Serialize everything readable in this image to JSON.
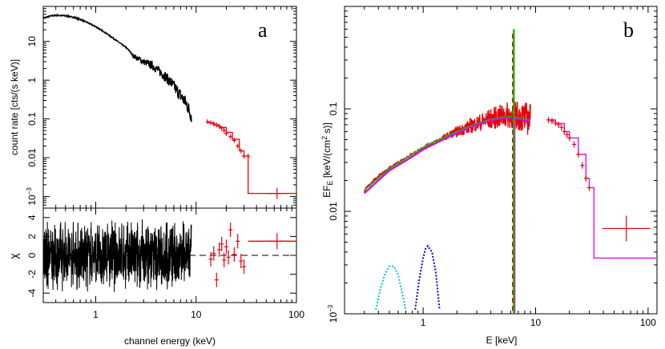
{
  "figure": {
    "colors": {
      "axis": "#000000",
      "data_black": "#000000",
      "data_red": "#e8000b",
      "model_green": "#00c800",
      "model_magenta": "#e000e0",
      "component_cyan": "#00c8c8",
      "component_blue": "#0000c8",
      "zero_line": "#000000"
    }
  },
  "chart_data": [
    {
      "panel": "a",
      "type": "scatter",
      "title": "",
      "xlabel": "channel energy (keV)",
      "ylabel": "count rate [cts/(s keV)]",
      "xscale": "log",
      "yscale": "log",
      "xlim": [
        0.3,
        100
      ],
      "ylim": [
        0.0005,
        80
      ],
      "x_ticks": [
        {
          "v": 1,
          "label": "1"
        },
        {
          "v": 10,
          "label": "10"
        },
        {
          "v": 100,
          "label": "100"
        }
      ],
      "y_ticks": [
        {
          "v": 0.001,
          "label": "10",
          "sup": "−3"
        },
        {
          "v": 0.01,
          "label": "0.01"
        },
        {
          "v": 0.1,
          "label": "0.1"
        },
        {
          "v": 1,
          "label": "1"
        },
        {
          "v": 10,
          "label": "10"
        }
      ],
      "series": [
        {
          "name": "soft-band spectrum",
          "color": "#000000",
          "x": [
            0.3,
            0.35,
            0.4,
            0.5,
            0.6,
            0.7,
            0.8,
            1.0,
            1.2,
            1.5,
            1.8,
            2.0,
            2.2,
            2.3,
            2.4,
            2.6,
            3.0,
            3.5,
            4.0,
            5.0,
            6.0,
            7.0,
            8.0,
            9.0
          ],
          "y": [
            40,
            45,
            47,
            46,
            42,
            37,
            32,
            24,
            18,
            12,
            8.5,
            7,
            5.5,
            4.5,
            4.2,
            3.7,
            3.0,
            2.5,
            2.0,
            1.2,
            0.7,
            0.4,
            0.25,
            0.12
          ]
        },
        {
          "name": "hard-band spectrum",
          "color": "#e8000b",
          "x": [
            13,
            14,
            15,
            16,
            17,
            18,
            19,
            20,
            22,
            24,
            26,
            28,
            30,
            33,
            64
          ],
          "y": [
            0.085,
            0.08,
            0.075,
            0.07,
            0.065,
            0.058,
            0.05,
            0.042,
            0.035,
            0.028,
            0.02,
            0.015,
            0.011,
            0.011,
            0.0012
          ]
        }
      ],
      "model_steps_x": [
        13,
        15,
        17,
        20,
        23,
        27,
        30,
        33,
        33,
        100
      ],
      "model_steps_y": [
        0.08,
        0.07,
        0.06,
        0.045,
        0.03,
        0.015,
        0.011,
        0.011,
        0.0012,
        0.0012
      ],
      "residuals": {
        "ylabel": "χ",
        "ylim": [
          -5,
          5
        ],
        "y_ticks": [
          -4,
          -2,
          0,
          2,
          4
        ],
        "x_black_range": [
          0.3,
          9
        ],
        "red_points": [
          {
            "x": 14.0,
            "y": -0.4
          },
          {
            "x": 15.0,
            "y": 0.2
          },
          {
            "x": 16.0,
            "y": -2.6
          },
          {
            "x": 17.0,
            "y": 0.6
          },
          {
            "x": 18.0,
            "y": 1.2
          },
          {
            "x": 19.0,
            "y": -0.5
          },
          {
            "x": 20.0,
            "y": 0.9
          },
          {
            "x": 21.0,
            "y": -0.2
          },
          {
            "x": 22.0,
            "y": 2.7
          },
          {
            "x": 24.0,
            "y": 0.1
          },
          {
            "x": 26.0,
            "y": 1.5
          },
          {
            "x": 28.0,
            "y": -0.6
          },
          {
            "x": 30.0,
            "y": -1.2
          },
          {
            "x": 64.0,
            "y": 1.5
          }
        ],
        "model_step": {
          "x_from": 33,
          "x_to": 100,
          "y": 1.5
        }
      }
    },
    {
      "panel": "b",
      "type": "scatter",
      "title": "",
      "xlabel": "E [keV]",
      "ylabel": "EF",
      "ylabel_sub": "E",
      "ylabel_units": " [keV/(cm",
      "ylabel_sup": "2",
      "ylabel_tail": " s)]",
      "xscale": "log",
      "yscale": "log",
      "xlim": [
        0.2,
        120
      ],
      "ylim": [
        0.001,
        1.0
      ],
      "x_ticks": [
        {
          "v": 1,
          "label": "1"
        },
        {
          "v": 10,
          "label": "10"
        },
        {
          "v": 100,
          "label": "100"
        }
      ],
      "y_ticks": [
        {
          "v": 0.001,
          "label": "10",
          "sup": "−3"
        },
        {
          "v": 0.01,
          "label": "0.01"
        },
        {
          "v": 0.1,
          "label": "0.1"
        }
      ],
      "series": [
        {
          "name": "unfolded data",
          "color": "#e8000b",
          "x": [
            0.3,
            0.35,
            0.4,
            0.5,
            0.6,
            0.8,
            1.0,
            1.5,
            2.0,
            3.0,
            4.0,
            5.0,
            6.0,
            7.0,
            8.0,
            9.0
          ],
          "y": [
            0.016,
            0.019,
            0.022,
            0.026,
            0.03,
            0.036,
            0.042,
            0.052,
            0.06,
            0.072,
            0.08,
            0.085,
            0.087,
            0.086,
            0.082,
            0.078
          ]
        },
        {
          "name": "hard-band data",
          "color": "#e8000b",
          "x": [
            13,
            14,
            15,
            16,
            17,
            18,
            19,
            20,
            22,
            24,
            26,
            28,
            30,
            64
          ],
          "y": [
            0.078,
            0.076,
            0.073,
            0.07,
            0.066,
            0.06,
            0.056,
            0.052,
            0.045,
            0.036,
            0.028,
            0.021,
            0.017,
            0.0068
          ]
        },
        {
          "name": "total model",
          "color": "#e000e0",
          "x": [
            0.3,
            0.5,
            0.8,
            1.0,
            1.5,
            2.0,
            3.0,
            4.0,
            5.0,
            6.0,
            7.0,
            9.0
          ],
          "y": [
            0.015,
            0.025,
            0.034,
            0.04,
            0.05,
            0.058,
            0.07,
            0.077,
            0.081,
            0.082,
            0.08,
            0.075
          ]
        },
        {
          "name": "continuum component",
          "color": "#00c800",
          "x": [
            0.3,
            0.5,
            0.8,
            1.0,
            1.5,
            2.0,
            3.0,
            4.0,
            5.0,
            6.0,
            7.0,
            9.0
          ],
          "y": [
            0.016,
            0.026,
            0.036,
            0.042,
            0.052,
            0.06,
            0.072,
            0.079,
            0.083,
            0.084,
            0.082,
            0.077
          ]
        },
        {
          "name": "soft component 1",
          "color": "#00c8c8",
          "x": [
            0.38,
            0.42,
            0.46,
            0.5,
            0.55,
            0.6,
            0.65,
            0.7
          ],
          "y": [
            0.0011,
            0.0018,
            0.0025,
            0.0029,
            0.0029,
            0.0024,
            0.0016,
            0.0011
          ]
        },
        {
          "name": "soft component 2",
          "color": "#0000c8",
          "x": [
            0.85,
            0.92,
            1.0,
            1.05,
            1.1,
            1.2,
            1.3,
            1.4
          ],
          "y": [
            0.0011,
            0.0021,
            0.0035,
            0.0043,
            0.0046,
            0.004,
            0.0025,
            0.0011
          ]
        }
      ],
      "iron_line": {
        "x": 6.4,
        "y_top": 0.6
      },
      "model_steps_x": [
        13,
        15,
        18,
        20,
        24,
        28,
        30,
        33,
        33,
        120
      ],
      "model_steps_y": [
        0.078,
        0.072,
        0.06,
        0.052,
        0.036,
        0.021,
        0.017,
        0.017,
        0.0035,
        0.0035
      ]
    }
  ],
  "panel_a": {
    "letter": "a"
  },
  "panel_b": {
    "letter": "b"
  }
}
